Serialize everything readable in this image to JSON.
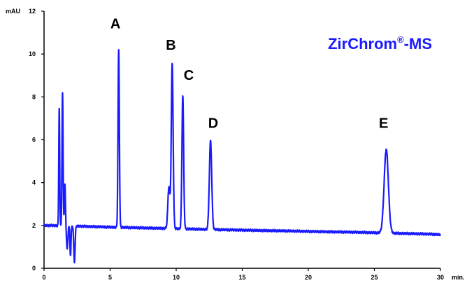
{
  "chart_data": {
    "type": "line",
    "title": "",
    "xlabel": "",
    "ylabel": "",
    "x_unit": "min.",
    "y_unit": "mAU",
    "xlim": [
      0,
      30
    ],
    "ylim": [
      0,
      12
    ],
    "x_ticks": [
      0,
      5,
      10,
      15,
      20,
      25,
      30
    ],
    "y_ticks": [
      0,
      2,
      4,
      6,
      8,
      10,
      12
    ],
    "grid": false,
    "line_color": "#1a1aff",
    "label_color": "#1a1aff",
    "brand": {
      "name": "ZirChrom",
      "mark": "®",
      "suffix": "-MS"
    },
    "series": [
      {
        "baseline": {
          "x": [
            0,
            2,
            3,
            5,
            8,
            10,
            12,
            15,
            18,
            20,
            23,
            25,
            27,
            29,
            30
          ],
          "y": [
            2.0,
            1.98,
            1.96,
            1.92,
            1.88,
            1.85,
            1.82,
            1.78,
            1.75,
            1.72,
            1.69,
            1.66,
            1.63,
            1.6,
            1.57
          ]
        },
        "peaks": [
          {
            "x": 1.15,
            "height": 7.5,
            "width": 0.035
          },
          {
            "x": 1.4,
            "height": 8.2,
            "width": 0.04
          },
          {
            "x": 1.58,
            "height": 3.9,
            "width": 0.04
          },
          {
            "x": 1.75,
            "height": 0.9,
            "width": 0.05
          },
          {
            "x": 2.0,
            "height": 0.6,
            "width": 0.04
          },
          {
            "x": 2.3,
            "height": 0.3,
            "width": 0.05
          },
          {
            "x": 5.65,
            "height": 10.2,
            "width": 0.05
          },
          {
            "x": 9.7,
            "height": 9.55,
            "width": 0.07
          },
          {
            "x": 9.45,
            "height": 3.8,
            "width": 0.08
          },
          {
            "x": 10.5,
            "height": 8.05,
            "width": 0.065
          },
          {
            "x": 12.6,
            "height": 5.95,
            "width": 0.09
          },
          {
            "x": 25.9,
            "height": 5.55,
            "width": 0.16
          }
        ]
      }
    ],
    "annotations": [
      {
        "text": "A",
        "x": 5.4,
        "y": 11.2
      },
      {
        "text": "B",
        "x": 9.6,
        "y": 10.2
      },
      {
        "text": "C",
        "x": 10.95,
        "y": 8.8
      },
      {
        "text": "D",
        "x": 12.8,
        "y": 6.55
      },
      {
        "text": "E",
        "x": 25.7,
        "y": 6.55
      }
    ]
  }
}
